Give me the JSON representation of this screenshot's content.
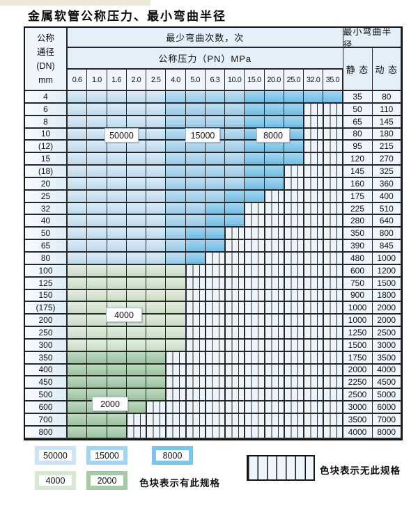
{
  "page": {
    "title": "金属软管公称压力、最小弯曲半径"
  },
  "table": {
    "corner_lines": [
      "公称",
      "通径",
      "(DN)",
      "mm"
    ],
    "cycles_header": "最少弯曲次数，次",
    "pressure_header": "公称压力（PN）MPa",
    "radius_header": "最小弯曲半径",
    "static_label": "静 态",
    "dynamic_label": "动 态",
    "pressures": [
      "0.6",
      "1.0",
      "1.6",
      "2.0",
      "2.5",
      "4.0",
      "5.0",
      "6.3",
      "10.0",
      "15.0",
      "20.0",
      "25.0",
      "32.0",
      "35.0"
    ],
    "rows": [
      {
        "dn": "4",
        "static": "35",
        "dynamic": "80",
        "bands": [
          [
            "b1",
            5
          ],
          [
            "b2",
            4
          ],
          [
            "b3",
            5
          ]
        ]
      },
      {
        "dn": "6",
        "static": "50",
        "dynamic": "110",
        "bands": [
          [
            "b1",
            5
          ],
          [
            "b2",
            4
          ],
          [
            "b3",
            3
          ]
        ]
      },
      {
        "dn": "8",
        "static": "65",
        "dynamic": "145",
        "bands": [
          [
            "b1",
            5
          ],
          [
            "b2",
            4
          ],
          [
            "b3",
            3
          ]
        ]
      },
      {
        "dn": "10",
        "static": "80",
        "dynamic": "180",
        "bands": [
          [
            "b1",
            5
          ],
          [
            "b2",
            4
          ],
          [
            "b3",
            3
          ]
        ]
      },
      {
        "dn": "(12)",
        "static": "95",
        "dynamic": "215",
        "bands": [
          [
            "b1",
            5
          ],
          [
            "b2",
            4
          ],
          [
            "b3",
            3
          ]
        ]
      },
      {
        "dn": "15",
        "static": "120",
        "dynamic": "270",
        "bands": [
          [
            "b1",
            5
          ],
          [
            "b2",
            4
          ],
          [
            "b3",
            3
          ]
        ]
      },
      {
        "dn": "(18)",
        "static": "145",
        "dynamic": "325",
        "bands": [
          [
            "b1",
            5
          ],
          [
            "b2",
            4
          ],
          [
            "b3",
            2
          ]
        ]
      },
      {
        "dn": "20",
        "static": "160",
        "dynamic": "360",
        "bands": [
          [
            "b1",
            5
          ],
          [
            "b2",
            4
          ],
          [
            "b3",
            2
          ]
        ]
      },
      {
        "dn": "25",
        "static": "175",
        "dynamic": "400",
        "bands": [
          [
            "b1",
            5
          ],
          [
            "b2",
            3
          ],
          [
            "b3",
            2
          ]
        ]
      },
      {
        "dn": "32",
        "static": "225",
        "dynamic": "510",
        "bands": [
          [
            "b1",
            5
          ],
          [
            "b2",
            2
          ],
          [
            "b3",
            2
          ]
        ]
      },
      {
        "dn": "40",
        "static": "280",
        "dynamic": "640",
        "bands": [
          [
            "b1",
            5
          ],
          [
            "b2",
            2
          ],
          [
            "b3",
            2
          ]
        ]
      },
      {
        "dn": "50",
        "static": "350",
        "dynamic": "800",
        "bands": [
          [
            "b1",
            5
          ],
          [
            "b2",
            1
          ],
          [
            "b3",
            2
          ]
        ]
      },
      {
        "dn": "65",
        "static": "390",
        "dynamic": "845",
        "bands": [
          [
            "b1",
            5
          ],
          [
            "b2",
            1
          ],
          [
            "b3",
            2
          ]
        ]
      },
      {
        "dn": "80",
        "static": "480",
        "dynamic": "1000",
        "bands": [
          [
            "b1",
            5
          ],
          [
            "b2",
            1
          ],
          [
            "b3",
            1
          ]
        ]
      },
      {
        "dn": "100",
        "static": "600",
        "dynamic": "1200",
        "bands": [
          [
            "g1",
            6
          ]
        ]
      },
      {
        "dn": "125",
        "static": "750",
        "dynamic": "1500",
        "bands": [
          [
            "g1",
            6
          ]
        ]
      },
      {
        "dn": "150",
        "static": "900",
        "dynamic": "1800",
        "bands": [
          [
            "g1",
            6
          ]
        ]
      },
      {
        "dn": "(175)",
        "static": "1000",
        "dynamic": "2000",
        "bands": [
          [
            "g1",
            6
          ]
        ]
      },
      {
        "dn": "200",
        "static": "1000",
        "dynamic": "2000",
        "bands": [
          [
            "g1",
            6
          ]
        ]
      },
      {
        "dn": "250",
        "static": "1250",
        "dynamic": "2500",
        "bands": [
          [
            "g1",
            6
          ]
        ]
      },
      {
        "dn": "300",
        "static": "1500",
        "dynamic": "3000",
        "bands": [
          [
            "g1",
            6
          ]
        ]
      },
      {
        "dn": "350",
        "static": "1750",
        "dynamic": "3500",
        "bands": [
          [
            "g2",
            5
          ]
        ]
      },
      {
        "dn": "400",
        "static": "2000",
        "dynamic": "4000",
        "bands": [
          [
            "g2",
            5
          ]
        ]
      },
      {
        "dn": "450",
        "static": "2250",
        "dynamic": "4500",
        "bands": [
          [
            "g2",
            5
          ]
        ]
      },
      {
        "dn": "500",
        "static": "2500",
        "dynamic": "5000",
        "bands": [
          [
            "g2",
            5
          ]
        ]
      },
      {
        "dn": "600",
        "static": "3000",
        "dynamic": "6000",
        "bands": [
          [
            "g2",
            4
          ]
        ]
      },
      {
        "dn": "700",
        "static": "3500",
        "dynamic": "7000",
        "bands": [
          [
            "g2",
            3
          ]
        ]
      },
      {
        "dn": "800",
        "static": "4000",
        "dynamic": "8000",
        "bands": [
          [
            "g2",
            3
          ]
        ]
      }
    ]
  },
  "bands": {
    "b1": {
      "label": "50000",
      "color": "#cbe5f6"
    },
    "b2": {
      "label": "15000",
      "color": "#a3d4f0"
    },
    "b3": {
      "label": "8000",
      "color": "#7bc6ec"
    },
    "g1": {
      "label": "4000",
      "color": "#d6e8d0"
    },
    "g2": {
      "label": "2000",
      "color": "#a5cba5"
    },
    "hatch": {
      "label": "无此规格",
      "color": "#edf5fb"
    }
  },
  "legend": {
    "available_note": "色块表示有此规格",
    "unavailable_note": "色块表示无此规格"
  }
}
